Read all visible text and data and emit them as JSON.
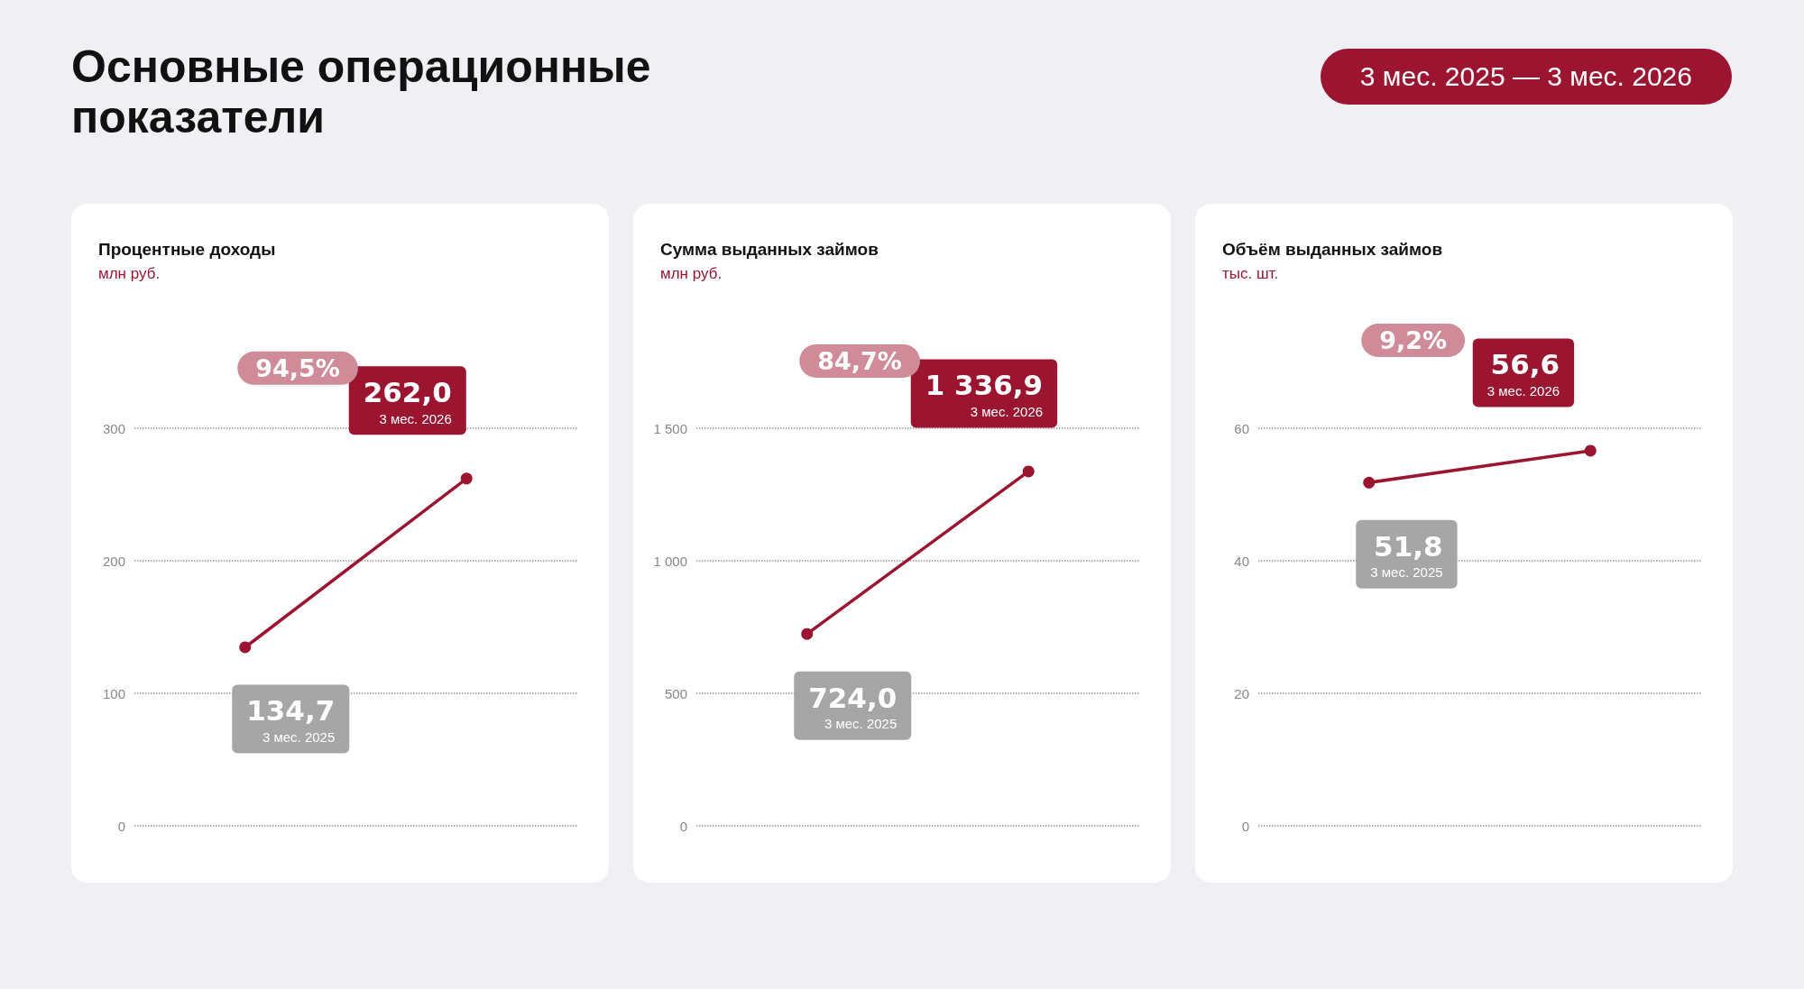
{
  "chart_data": [
    {
      "type": "other",
      "title": "Основные операционные показатели",
      "annotations": [
        "3 мес. 2025 — 3 мес. 2026"
      ]
    },
    {
      "type": "line",
      "title": "Процентные доходы",
      "subtitle": "млн руб.",
      "categories": [
        "3 мес. 2025",
        "3 мес. 2026"
      ],
      "series": [
        {
          "color": "#9b1530",
          "values": [
            134.7,
            262.0
          ],
          "value_labels": [
            "134,7",
            "262,0"
          ]
        }
      ],
      "annotations": [
        "94,5%"
      ],
      "ylim": [
        0,
        300
      ],
      "yticks": [
        0,
        100,
        200,
        300
      ],
      "grid": "y",
      "marker": "circle",
      "tick_labels": "y"
    },
    {
      "type": "line",
      "title": "Сумма выданных займов",
      "subtitle": "млн руб.",
      "categories": [
        "3 мес. 2025",
        "3 мес. 2026"
      ],
      "series": [
        {
          "color": "#9b1530",
          "values": [
            724.0,
            1336.9
          ],
          "value_labels": [
            "724,0",
            "1 336,9"
          ]
        }
      ],
      "annotations": [
        "84,7%"
      ],
      "ylim": [
        0,
        1500
      ],
      "yticks": [
        0,
        500,
        {
          "value": 1000,
          "label": "1 000"
        },
        {
          "value": 1500,
          "label": "1 500"
        }
      ],
      "grid": "y",
      "marker": "circle",
      "tick_labels": "y"
    },
    {
      "type": "line",
      "title": "Объём выданных займов",
      "subtitle": "тыс. шт.",
      "categories": [
        "3 мес. 2025",
        "3 мес. 2026"
      ],
      "series": [
        {
          "color": "#9b1530",
          "values": [
            51.8,
            56.6
          ],
          "value_labels": [
            "51,8",
            "56,6"
          ]
        }
      ],
      "annotations": [
        "9,2%"
      ],
      "ylim": [
        0,
        60
      ],
      "yticks": [
        0,
        20,
        40,
        60
      ],
      "grid": "y",
      "marker": "circle",
      "tick_labels": "y"
    }
  ]
}
